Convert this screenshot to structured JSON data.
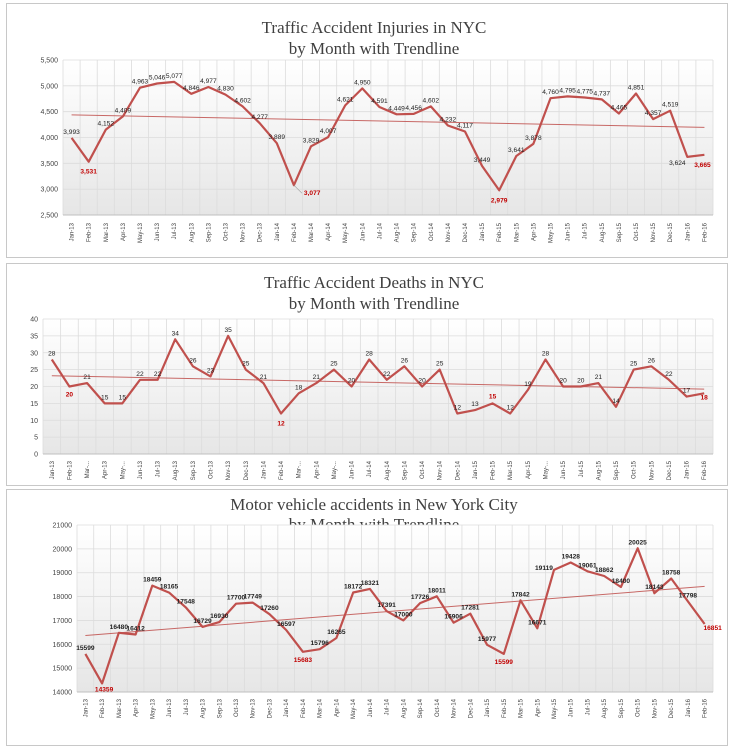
{
  "chart_data": [
    {
      "type": "line",
      "title_lines": [
        "Traffic Accident Injuries in NYC",
        "by Month with  Trendline"
      ],
      "categories": [
        "Jan-13",
        "Feb-13",
        "Mar-13",
        "Apr-13",
        "May-13",
        "Jun-13",
        "Jul-13",
        "Aug-13",
        "Sep-13",
        "Oct-13",
        "Nov-13",
        "Dec-13",
        "Jan-14",
        "Feb-14",
        "Mar-14",
        "Apr-14",
        "May-14",
        "Jun-14",
        "Jul-14",
        "Aug-14",
        "Sep-14",
        "Oct-14",
        "Nov-14",
        "Dec-14",
        "Jan-15",
        "Feb-15",
        "Mar-15",
        "Apr-15",
        "May-15",
        "Jun-15",
        "Jul-15",
        "Aug-15",
        "Sep-15",
        "Oct-15",
        "Nov-15",
        "Dec-15",
        "Jan-16",
        "Feb-16"
      ],
      "values": [
        3993,
        3531,
        4152,
        4409,
        4963,
        5046,
        5077,
        4846,
        4977,
        4830,
        4602,
        4277,
        3889,
        3077,
        3829,
        4007,
        4621,
        4950,
        4591,
        4449,
        4456,
        4602,
        4232,
        4117,
        3449,
        2979,
        3641,
        3878,
        4760,
        4795,
        4775,
        4737,
        4465,
        4851,
        4357,
        4519,
        3624,
        3665
      ],
      "labels": [
        "3,993",
        "3,531",
        "4,152",
        "4,409",
        "4,963",
        "5,046",
        "5,077",
        "4,846",
        "4,977",
        "4,830",
        "4,602",
        "4,277",
        "3,889",
        "3,077",
        "3,829",
        "4,007",
        "4,621",
        "4,950",
        "4,591",
        "4,449",
        "4,456",
        "4,602",
        "4,232",
        "4,117",
        "3,449",
        "2,979",
        "3,641",
        "3,878",
        "4,760",
        "4,795",
        "4,775",
        "4,737",
        "4,465",
        "4,851",
        "4,357",
        "4,519",
        "3,624",
        "3,665"
      ],
      "highlight_indices": [
        1,
        13,
        25,
        37
      ],
      "ylim": [
        2500,
        5500
      ],
      "yticks": [
        2500,
        3000,
        3500,
        4000,
        4500,
        5000,
        5500
      ],
      "ytick_labels": [
        "2,500",
        "3,000",
        "3,500",
        "4,000",
        "4,500",
        "5,000",
        "5,500"
      ],
      "trendline": true,
      "grid": true,
      "line_color": "#c0504d",
      "trend_color": "#c0504d",
      "highlight_color": "#c00000"
    },
    {
      "type": "line",
      "title_lines": [
        "Traffic Accident Deaths in NYC",
        "by Month with  Trendline"
      ],
      "categories": [
        "Jan-13",
        "Feb-13",
        "Mar-...",
        "Apr-13",
        "May-...",
        "Jun-13",
        "Jul-13",
        "Aug-13",
        "Sep-13",
        "Oct-13",
        "Nov-13",
        "Dec-13",
        "Jan-14",
        "Feb-14",
        "Mar-...",
        "Apr-14",
        "May-...",
        "Jun-14",
        "Jul-14",
        "Aug-14",
        "Sep-14",
        "Oct-14",
        "Nov-14",
        "Dec-14",
        "Jan-15",
        "Feb-15",
        "Mar-15",
        "Apr-15",
        "May-...",
        "Jun-15",
        "Jul-15",
        "Aug-15",
        "Sep-15",
        "Oct-15",
        "Nov-15",
        "Dec-15",
        "Jan-16",
        "Feb-16"
      ],
      "values": [
        28,
        20,
        21,
        15,
        15,
        22,
        22,
        34,
        26,
        23,
        35,
        25,
        21,
        12,
        18,
        21,
        25,
        20,
        28,
        22,
        26,
        20,
        25,
        12,
        13,
        15,
        12,
        19,
        28,
        20,
        20,
        21,
        14,
        25,
        26,
        22,
        17,
        18
      ],
      "labels": [
        "28",
        "20",
        "21",
        "15",
        "15",
        "22",
        "22",
        "34",
        "26",
        "23",
        "35",
        "25",
        "21",
        "12",
        "18",
        "21",
        "25",
        "20",
        "28",
        "22",
        "26",
        "20",
        "25",
        "12",
        "13",
        "15",
        "12",
        "19",
        "28",
        "20",
        "20",
        "21",
        "14",
        "25",
        "26",
        "22",
        "17",
        "18"
      ],
      "highlight_indices": [
        1,
        13,
        25,
        37
      ],
      "ylim": [
        0,
        40
      ],
      "yticks": [
        0,
        5,
        10,
        15,
        20,
        25,
        30,
        35,
        40
      ],
      "ytick_labels": [
        "0",
        "5",
        "10",
        "15",
        "20",
        "25",
        "30",
        "35",
        "40"
      ],
      "trendline": true,
      "grid": true,
      "line_color": "#c0504d",
      "trend_color": "#c0504d",
      "highlight_color": "#c00000"
    },
    {
      "type": "line",
      "title_lines": [
        "Motor vehicle accidents in New York City",
        "by Month with Trendline"
      ],
      "categories": [
        "Jan-13",
        "Feb-13",
        "Mar-13",
        "Apr-13",
        "May-13",
        "Jun-13",
        "Jul-13",
        "Aug-13",
        "Sep-13",
        "Oct-13",
        "Nov-13",
        "Dec-13",
        "Jan-14",
        "Feb-14",
        "Mar-14",
        "Apr-14",
        "May-14",
        "Jun-14",
        "Jul-14",
        "Aug-14",
        "Sep-14",
        "Oct-14",
        "Nov-14",
        "Dec-14",
        "Jan-15",
        "Feb-15",
        "Mar-15",
        "Apr-15",
        "May-15",
        "Jun-15",
        "Jul-15",
        "Aug-15",
        "Sep-15",
        "Oct-15",
        "Nov-15",
        "Dec-15",
        "Jan-16",
        "Feb-16"
      ],
      "values": [
        15599,
        14359,
        16480,
        16412,
        18459,
        18165,
        17548,
        16729,
        16930,
        17700,
        17749,
        17260,
        16597,
        15683,
        15796,
        16265,
        18172,
        18321,
        17391,
        17000,
        17726,
        18011,
        16906,
        17281,
        15977,
        15599,
        17842,
        16671,
        19119,
        19428,
        19061,
        18862,
        18400,
        20025,
        18143,
        18758,
        17798,
        16851
      ],
      "labels": [
        "15599",
        "14359",
        "16480",
        "16412",
        "18459",
        "18165",
        "17548",
        "16729",
        "16930",
        "17700",
        "17749",
        "17260",
        "16597",
        "15683",
        "15796",
        "16265",
        "18172",
        "18321",
        "17391",
        "17000",
        "17726",
        "18011",
        "16906",
        "17281",
        "15977",
        "15599",
        "17842",
        "16671",
        "19119",
        "19428",
        "19061",
        "18862",
        "18400",
        "20025",
        "18143",
        "18758",
        "17798",
        "16851"
      ],
      "highlight_indices": [
        1,
        13,
        25,
        37
      ],
      "ylim": [
        14000,
        21000
      ],
      "yticks": [
        14000,
        15000,
        16000,
        17000,
        18000,
        19000,
        20000,
        21000
      ],
      "ytick_labels": [
        "14000",
        "15000",
        "16000",
        "17000",
        "18000",
        "19000",
        "20000",
        "21000"
      ],
      "trendline": true,
      "grid": true,
      "line_color": "#c0504d",
      "trend_color": "#c0504d",
      "highlight_color": "#c00000"
    }
  ]
}
